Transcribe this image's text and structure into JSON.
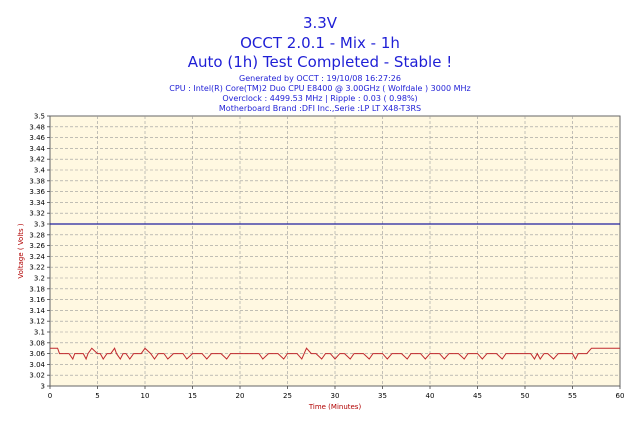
{
  "header": {
    "title_line1": "3.3V",
    "title_line2": "OCCT 2.0.1 - Mix - 1h",
    "title_line3": "Auto (1h) Test Completed - Stable !",
    "info_line1": "Generated by OCCT : 19/10/08 16:27:26",
    "info_line2": "CPU : Intel(R) Core(TM)2 Duo CPU E8400 @ 3.00GHz ( Wolfdale ) 3000 MHz",
    "info_line3": "Overclock : 4499.53 MHz | Ripple : 0.03 ( 0.98%)",
    "info_line4": "Motherboard Brand :DFI Inc.,Serie :LP LT X48-T3RS"
  },
  "colors": {
    "title": "#1f1fd6",
    "plot_background": "#fff8e1",
    "grid": "#9a9a9a",
    "axis_label": "#b00000",
    "series": "#c0282d",
    "reference": "#2020a0"
  },
  "chart_data": {
    "type": "line",
    "xlabel": "Time (Minutes)",
    "ylabel": "Voltage ( Volts )",
    "xlim": [
      0,
      60
    ],
    "ylim": [
      3.0,
      3.5
    ],
    "x_ticks": [
      0,
      5,
      10,
      15,
      20,
      25,
      30,
      35,
      40,
      45,
      50,
      55,
      60
    ],
    "y_ticks": [
      3,
      3.02,
      3.04,
      3.06,
      3.08,
      3.1,
      3.12,
      3.14,
      3.16,
      3.18,
      3.2,
      3.22,
      3.24,
      3.26,
      3.28,
      3.3,
      3.32,
      3.34,
      3.36,
      3.38,
      3.4,
      3.42,
      3.44,
      3.46,
      3.48,
      3.5
    ],
    "y_tick_labels": [
      "3",
      "3.02",
      "3.04",
      "3.06",
      "3.08",
      "3.1",
      "3.12",
      "3.14",
      "3.16",
      "3.18",
      "3.2",
      "3.22",
      "3.24",
      "3.26",
      "3.28",
      "3.3",
      "3.32",
      "3.34",
      "3.36",
      "3.38",
      "3.4",
      "3.42",
      "3.44",
      "3.46",
      "3.48",
      "3.5"
    ],
    "grid": true,
    "reference_line": 3.3,
    "series": [
      {
        "x": [
          0,
          0.8,
          1.0,
          2.0,
          2.4,
          2.6,
          3.0,
          3.5,
          3.8,
          4.0,
          4.4,
          5.0,
          5.3,
          5.6,
          6.0,
          6.4,
          6.8,
          7.0,
          7.4,
          7.7,
          8.0,
          8.4,
          8.8,
          9.2,
          9.6,
          10.0,
          10.6,
          11.0,
          11.4,
          12.0,
          12.4,
          13.0,
          13.6,
          14.0,
          14.4,
          15.0,
          15.6,
          16.0,
          16.5,
          17.0,
          17.5,
          18.0,
          18.6,
          19.0,
          19.5,
          20.0,
          21.0,
          22.0,
          22.4,
          23.0,
          23.6,
          24.0,
          24.6,
          25.0,
          25.5,
          26.0,
          26.5,
          27.0,
          27.5,
          28.0,
          28.6,
          29.0,
          29.5,
          30.0,
          30.5,
          31.0,
          31.6,
          32.0,
          32.5,
          33.0,
          33.6,
          34.0,
          34.6,
          35.0,
          35.5,
          36.0,
          36.6,
          37.0,
          37.6,
          38.0,
          38.6,
          39.0,
          39.5,
          40.0,
          40.6,
          41.0,
          41.5,
          42.0,
          42.5,
          43.0,
          43.6,
          44.0,
          44.6,
          45.0,
          45.5,
          46.0,
          46.6,
          47.0,
          47.6,
          48.0,
          48.5,
          49.0,
          49.5,
          50.0,
          50.6,
          51.0,
          51.3,
          51.6,
          52.0,
          52.4,
          53.0,
          53.5,
          54.0,
          54.5,
          55.0,
          55.3,
          55.6,
          56.0,
          56.5,
          57.0,
          58.0,
          59.0,
          60.0
        ],
        "values": [
          3.07,
          3.07,
          3.06,
          3.06,
          3.05,
          3.06,
          3.06,
          3.06,
          3.05,
          3.06,
          3.07,
          3.06,
          3.06,
          3.05,
          3.06,
          3.06,
          3.07,
          3.06,
          3.05,
          3.06,
          3.06,
          3.05,
          3.06,
          3.06,
          3.06,
          3.07,
          3.06,
          3.05,
          3.06,
          3.06,
          3.05,
          3.06,
          3.06,
          3.06,
          3.05,
          3.06,
          3.06,
          3.06,
          3.05,
          3.06,
          3.06,
          3.06,
          3.05,
          3.06,
          3.06,
          3.06,
          3.06,
          3.06,
          3.05,
          3.06,
          3.06,
          3.06,
          3.05,
          3.06,
          3.06,
          3.06,
          3.05,
          3.07,
          3.06,
          3.06,
          3.05,
          3.06,
          3.06,
          3.05,
          3.06,
          3.06,
          3.05,
          3.06,
          3.06,
          3.06,
          3.05,
          3.06,
          3.06,
          3.06,
          3.05,
          3.06,
          3.06,
          3.06,
          3.05,
          3.06,
          3.06,
          3.06,
          3.05,
          3.06,
          3.06,
          3.06,
          3.05,
          3.06,
          3.06,
          3.06,
          3.05,
          3.06,
          3.06,
          3.06,
          3.05,
          3.06,
          3.06,
          3.06,
          3.05,
          3.06,
          3.06,
          3.06,
          3.06,
          3.06,
          3.06,
          3.05,
          3.06,
          3.05,
          3.06,
          3.06,
          3.05,
          3.06,
          3.06,
          3.06,
          3.06,
          3.05,
          3.06,
          3.06,
          3.06,
          3.07,
          3.07,
          3.07,
          3.07
        ]
      }
    ]
  }
}
